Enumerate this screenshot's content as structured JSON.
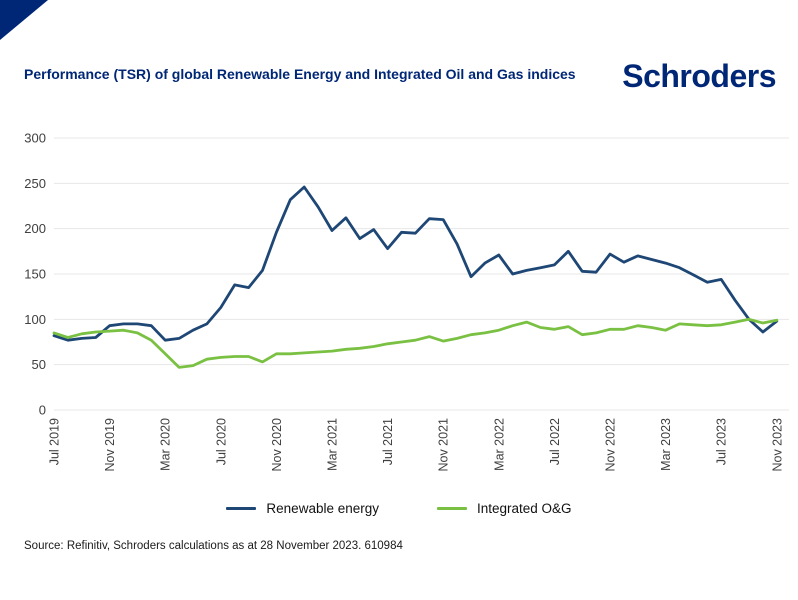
{
  "header": {
    "title": "Performance (TSR) of global Renewable Energy and Integrated Oil and Gas indices",
    "logo": "Schroders"
  },
  "footer": {
    "source": "Source: Refinitiv, Schroders calculations as at 28 November 2023. 610984"
  },
  "colors": {
    "brand_navy": "#002776",
    "renewable_line": "#1e4775",
    "integrated_line": "#7ac143",
    "gridline": "#e7e7e7",
    "tick_text": "#404040"
  },
  "chart_data": {
    "type": "line",
    "title": "Performance (TSR) of global Renewable Energy and Integrated Oil and Gas indices",
    "x_unit": "monthly, Jul 2019 - Nov 2023",
    "x_tick_labels": [
      "Jul 2019",
      "Nov 2019",
      "Mar 2020",
      "Jul 2020",
      "Nov 2020",
      "Mar 2021",
      "Jul 2021",
      "Nov 2021",
      "Mar 2022",
      "Jul 2022",
      "Nov 2022",
      "Mar 2023",
      "Jul 2023",
      "Nov 2023"
    ],
    "x_tick_every_n_points": 4,
    "ylim": [
      0,
      300
    ],
    "yticks": [
      0,
      50,
      100,
      150,
      200,
      250,
      300
    ],
    "grid": "horizontal",
    "legend_position": "bottom",
    "series": [
      {
        "name": "Renewable energy",
        "color": "#1e4775",
        "values": [
          82,
          77,
          79,
          80,
          93,
          95,
          95,
          93,
          77,
          79,
          88,
          95,
          113,
          138,
          135,
          154,
          196,
          232,
          246,
          224,
          198,
          212,
          189,
          199,
          178,
          196,
          195,
          211,
          210,
          183,
          147,
          162,
          171,
          150,
          154,
          157,
          160,
          175,
          153,
          152,
          172,
          163,
          170,
          166,
          162,
          157,
          149,
          141,
          144,
          121,
          100,
          86,
          98
        ]
      },
      {
        "name": "Integrated O&G",
        "color": "#7ac143",
        "values": [
          85,
          80,
          84,
          86,
          87,
          88,
          85,
          77,
          62,
          47,
          49,
          56,
          58,
          59,
          59,
          53,
          62,
          62,
          63,
          64,
          65,
          67,
          68,
          70,
          73,
          75,
          77,
          81,
          76,
          79,
          83,
          85,
          88,
          93,
          97,
          91,
          89,
          92,
          83,
          85,
          89,
          89,
          93,
          91,
          88,
          95,
          94,
          93,
          94,
          97,
          100,
          96,
          99
        ]
      }
    ]
  }
}
